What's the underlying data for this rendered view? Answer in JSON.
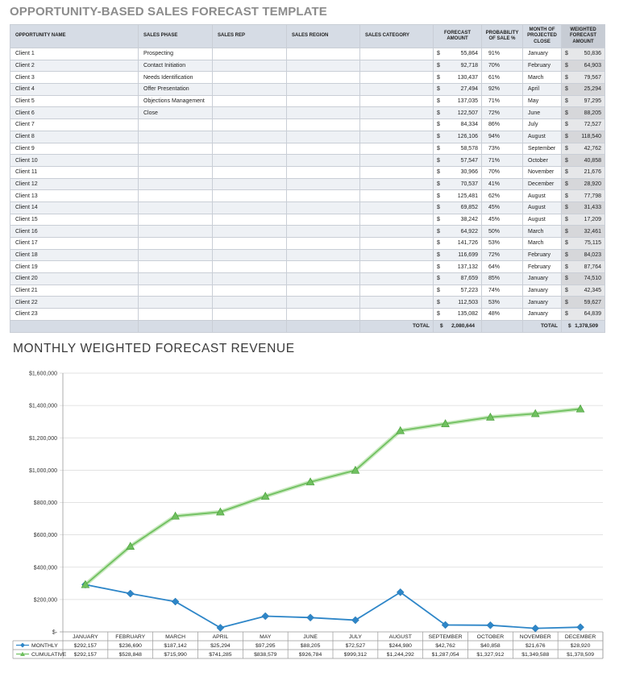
{
  "title": "OPPORTUNITY-BASED SALES FORECAST TEMPLATE",
  "table": {
    "headers": {
      "opportunity": "OPPORTUNITY NAME",
      "phase": "SALES PHASE",
      "rep": "SALES REP",
      "region": "SALES REGION",
      "category": "SALES CATEGORY",
      "forecast": "FORECAST AMOUNT",
      "probability": "PROBABILITY OF SALE %",
      "month": "MONTH OF PROJECTED CLOSE",
      "weighted": "WEIGHTED FORECAST AMOUNT"
    },
    "currency": "$",
    "rows": [
      {
        "name": "Client 1",
        "phase": "Prospecting",
        "forecast": "55,864",
        "prob": "91%",
        "month": "January",
        "weighted": "50,836"
      },
      {
        "name": "Client 2",
        "phase": "Contact Initiation",
        "forecast": "92,718",
        "prob": "70%",
        "month": "February",
        "weighted": "64,903"
      },
      {
        "name": "Client 3",
        "phase": "Needs Identification",
        "forecast": "130,437",
        "prob": "61%",
        "month": "March",
        "weighted": "79,567"
      },
      {
        "name": "Client 4",
        "phase": "Offer Presentation",
        "forecast": "27,494",
        "prob": "92%",
        "month": "April",
        "weighted": "25,294"
      },
      {
        "name": "Client 5",
        "phase": "Objections Management",
        "forecast": "137,035",
        "prob": "71%",
        "month": "May",
        "weighted": "97,295"
      },
      {
        "name": "Client 6",
        "phase": "Close",
        "forecast": "122,507",
        "prob": "72%",
        "month": "June",
        "weighted": "88,205"
      },
      {
        "name": "Client 7",
        "phase": "",
        "forecast": "84,334",
        "prob": "86%",
        "month": "July",
        "weighted": "72,527"
      },
      {
        "name": "Client 8",
        "phase": "",
        "forecast": "126,106",
        "prob": "94%",
        "month": "August",
        "weighted": "118,540"
      },
      {
        "name": "Client 9",
        "phase": "",
        "forecast": "58,578",
        "prob": "73%",
        "month": "September",
        "weighted": "42,762"
      },
      {
        "name": "Client 10",
        "phase": "",
        "forecast": "57,547",
        "prob": "71%",
        "month": "October",
        "weighted": "40,858"
      },
      {
        "name": "Client 11",
        "phase": "",
        "forecast": "30,966",
        "prob": "70%",
        "month": "November",
        "weighted": "21,676"
      },
      {
        "name": "Client 12",
        "phase": "",
        "forecast": "70,537",
        "prob": "41%",
        "month": "December",
        "weighted": "28,920"
      },
      {
        "name": "Client 13",
        "phase": "",
        "forecast": "125,481",
        "prob": "62%",
        "month": "August",
        "weighted": "77,798"
      },
      {
        "name": "Client 14",
        "phase": "",
        "forecast": "69,852",
        "prob": "45%",
        "month": "August",
        "weighted": "31,433"
      },
      {
        "name": "Client 15",
        "phase": "",
        "forecast": "38,242",
        "prob": "45%",
        "month": "August",
        "weighted": "17,209"
      },
      {
        "name": "Client 16",
        "phase": "",
        "forecast": "64,922",
        "prob": "50%",
        "month": "March",
        "weighted": "32,461"
      },
      {
        "name": "Client 17",
        "phase": "",
        "forecast": "141,726",
        "prob": "53%",
        "month": "March",
        "weighted": "75,115"
      },
      {
        "name": "Client 18",
        "phase": "",
        "forecast": "116,699",
        "prob": "72%",
        "month": "February",
        "weighted": "84,023"
      },
      {
        "name": "Client 19",
        "phase": "",
        "forecast": "137,132",
        "prob": "64%",
        "month": "February",
        "weighted": "87,764"
      },
      {
        "name": "Client 20",
        "phase": "",
        "forecast": "87,659",
        "prob": "85%",
        "month": "January",
        "weighted": "74,510"
      },
      {
        "name": "Client 21",
        "phase": "",
        "forecast": "57,223",
        "prob": "74%",
        "month": "January",
        "weighted": "42,345"
      },
      {
        "name": "Client 22",
        "phase": "",
        "forecast": "112,503",
        "prob": "53%",
        "month": "January",
        "weighted": "59,627"
      },
      {
        "name": "Client 23",
        "phase": "",
        "forecast": "135,082",
        "prob": "48%",
        "month": "January",
        "weighted": "64,839"
      }
    ],
    "totals": {
      "label_forecast": "TOTAL",
      "forecast": "2,080,644",
      "label_weighted": "TOTAL",
      "weighted": "1,378,509"
    }
  },
  "section_title": "MONTHLY WEIGHTED FORECAST REVENUE",
  "colors": {
    "monthly": "#2e86c8",
    "cumulative": "#70c060",
    "header_bg": "#d6dce5"
  },
  "chart_data": {
    "type": "line",
    "categories": [
      "JANUARY",
      "FEBRUARY",
      "MARCH",
      "APRIL",
      "MAY",
      "JUNE",
      "JULY",
      "AUGUST",
      "SEPTEMBER",
      "OCTOBER",
      "NOVEMBER",
      "DECEMBER"
    ],
    "series": [
      {
        "name": "MONTHLY",
        "marker": "diamond",
        "values": [
          292157,
          236690,
          187142,
          25294,
          97295,
          88205,
          72527,
          244980,
          42762,
          40858,
          21676,
          28920
        ]
      },
      {
        "name": "CUMULATIVE",
        "marker": "triangle",
        "values": [
          292157,
          528848,
          715990,
          741285,
          838579,
          926784,
          999312,
          1244292,
          1287054,
          1327912,
          1349588,
          1378509
        ]
      }
    ],
    "data_table_labels": {
      "MONTHLY": [
        "$292,157",
        "$236,690",
        "$187,142",
        "$25,294",
        "$97,295",
        "$88,205",
        "$72,527",
        "$244,980",
        "$42,762",
        "$40,858",
        "$21,676",
        "$28,920"
      ],
      "CUMULATIVE": [
        "$292,157",
        "$528,848",
        "$715,990",
        "$741,285",
        "$838,579",
        "$926,784",
        "$999,312",
        "$1,244,292",
        "$1,287,054",
        "$1,327,912",
        "$1,349,588",
        "$1,378,509"
      ]
    },
    "y_ticks": [
      "$-",
      "$200,000",
      "$400,000",
      "$600,000",
      "$800,000",
      "$1,000,000",
      "$1,200,000",
      "$1,400,000",
      "$1,600,000"
    ],
    "ylim": [
      0,
      1600000
    ],
    "grid": true,
    "legend": "data-table-bottom"
  }
}
